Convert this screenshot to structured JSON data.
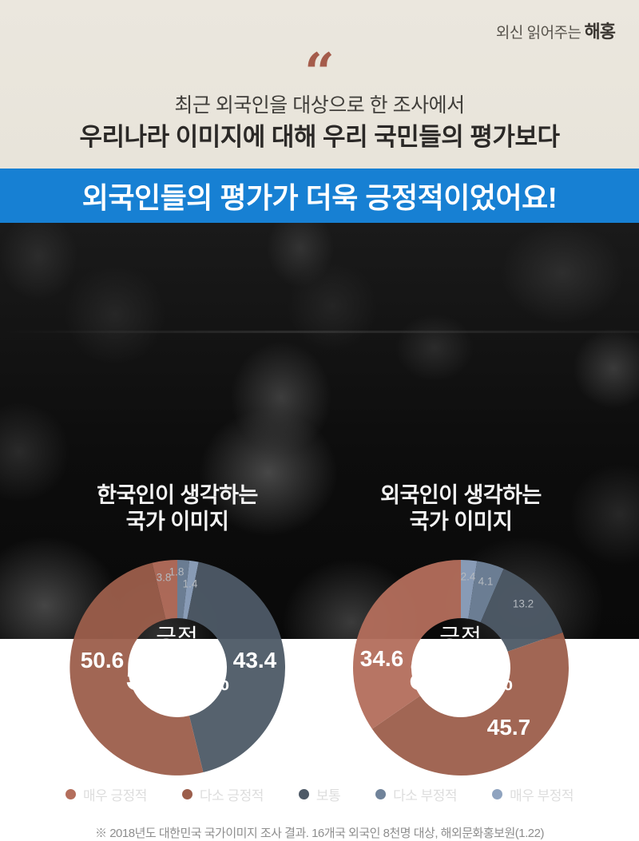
{
  "brand": {
    "prefix": "외신 읽어주는",
    "name": "해홍"
  },
  "quote_mark": "“",
  "header": {
    "line1": "최근 외국인을 대상으로 한 조사에서",
    "line2": "우리나라 이미지에 대해 우리 국민들의 평가보다"
  },
  "banner": {
    "text": "외국인들의 평가가 더욱 긍정적이었어요!",
    "bg_color": "#1780d3",
    "text_color": "#ffffff"
  },
  "chart_data": [
    {
      "type": "donut",
      "title_lines": [
        "한국인이 생각하는",
        "국가 이미지"
      ],
      "center_label": "긍정",
      "center_value": "54.4",
      "center_unit": "%",
      "series": [
        {
          "name": "매우 긍정적",
          "value": 3.8
        },
        {
          "name": "다소 긍정적",
          "value": 50.6
        },
        {
          "name": "보통",
          "value": 43.4
        },
        {
          "name": "다소 부정적",
          "value": 1.8
        },
        {
          "name": "매우 부정적",
          "value": 1.4
        }
      ]
    },
    {
      "type": "donut",
      "title_lines": [
        "외국인이 생각하는",
        "국가 이미지"
      ],
      "center_label": "긍정",
      "center_value": "80.3",
      "center_unit": "%",
      "series": [
        {
          "name": "매우 긍정적",
          "value": 34.6
        },
        {
          "name": "다소 긍정적",
          "value": 45.7
        },
        {
          "name": "보통",
          "value": 13.2
        },
        {
          "name": "다소 부정적",
          "value": 4.1
        },
        {
          "name": "매우 부정적",
          "value": 2.4
        }
      ]
    }
  ],
  "legend": [
    {
      "label": "매우 긍정적",
      "color": "#b46e5c"
    },
    {
      "label": "다소 긍정적",
      "color": "#9c5e4b"
    },
    {
      "label": "보통",
      "color": "#4e5a67"
    },
    {
      "label": "다소 부정적",
      "color": "#70839a"
    },
    {
      "label": "매우 부정적",
      "color": "#8fa3bf"
    }
  ],
  "footnote": "※ 2018년도 대한민국 국가이미지 조사 결과. 16개국 외국인 8천명 대상, 해외문화홍보원(1.22)"
}
